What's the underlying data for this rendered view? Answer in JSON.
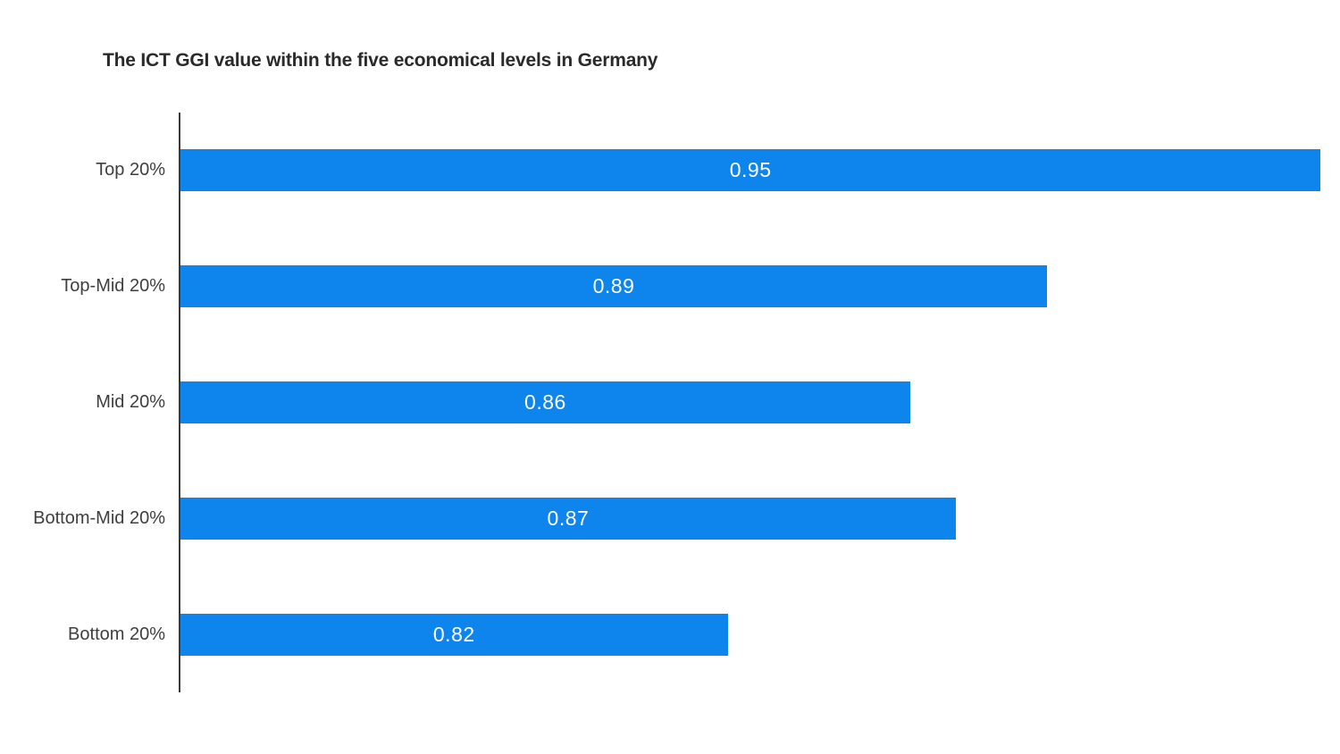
{
  "chart_data": {
    "type": "bar",
    "orientation": "horizontal",
    "title": "The ICT GGI value within the five economical levels in Germany",
    "categories": [
      "Top 20%",
      "Top-Mid 20%",
      "Mid 20%",
      "Bottom-Mid 20%",
      "Bottom 20%"
    ],
    "values": [
      0.95,
      0.89,
      0.86,
      0.87,
      0.82
    ],
    "value_labels": [
      "0.95",
      "0.89",
      "0.86",
      "0.87",
      "0.82"
    ],
    "xlabel": "",
    "ylabel": "",
    "xlim": [
      0.7,
      0.9523
    ],
    "grid": false,
    "x_axis_ticks_visible": false,
    "legend_position": "none",
    "value_labels_position": "center-of-bar",
    "colors": {
      "bar": "#0e85ec",
      "value_label": "#ffffff",
      "category_label": "#3f3f3f",
      "axis_line": "#3a3a3a",
      "title": "#2a2a2a",
      "background": "#ffffff"
    }
  }
}
